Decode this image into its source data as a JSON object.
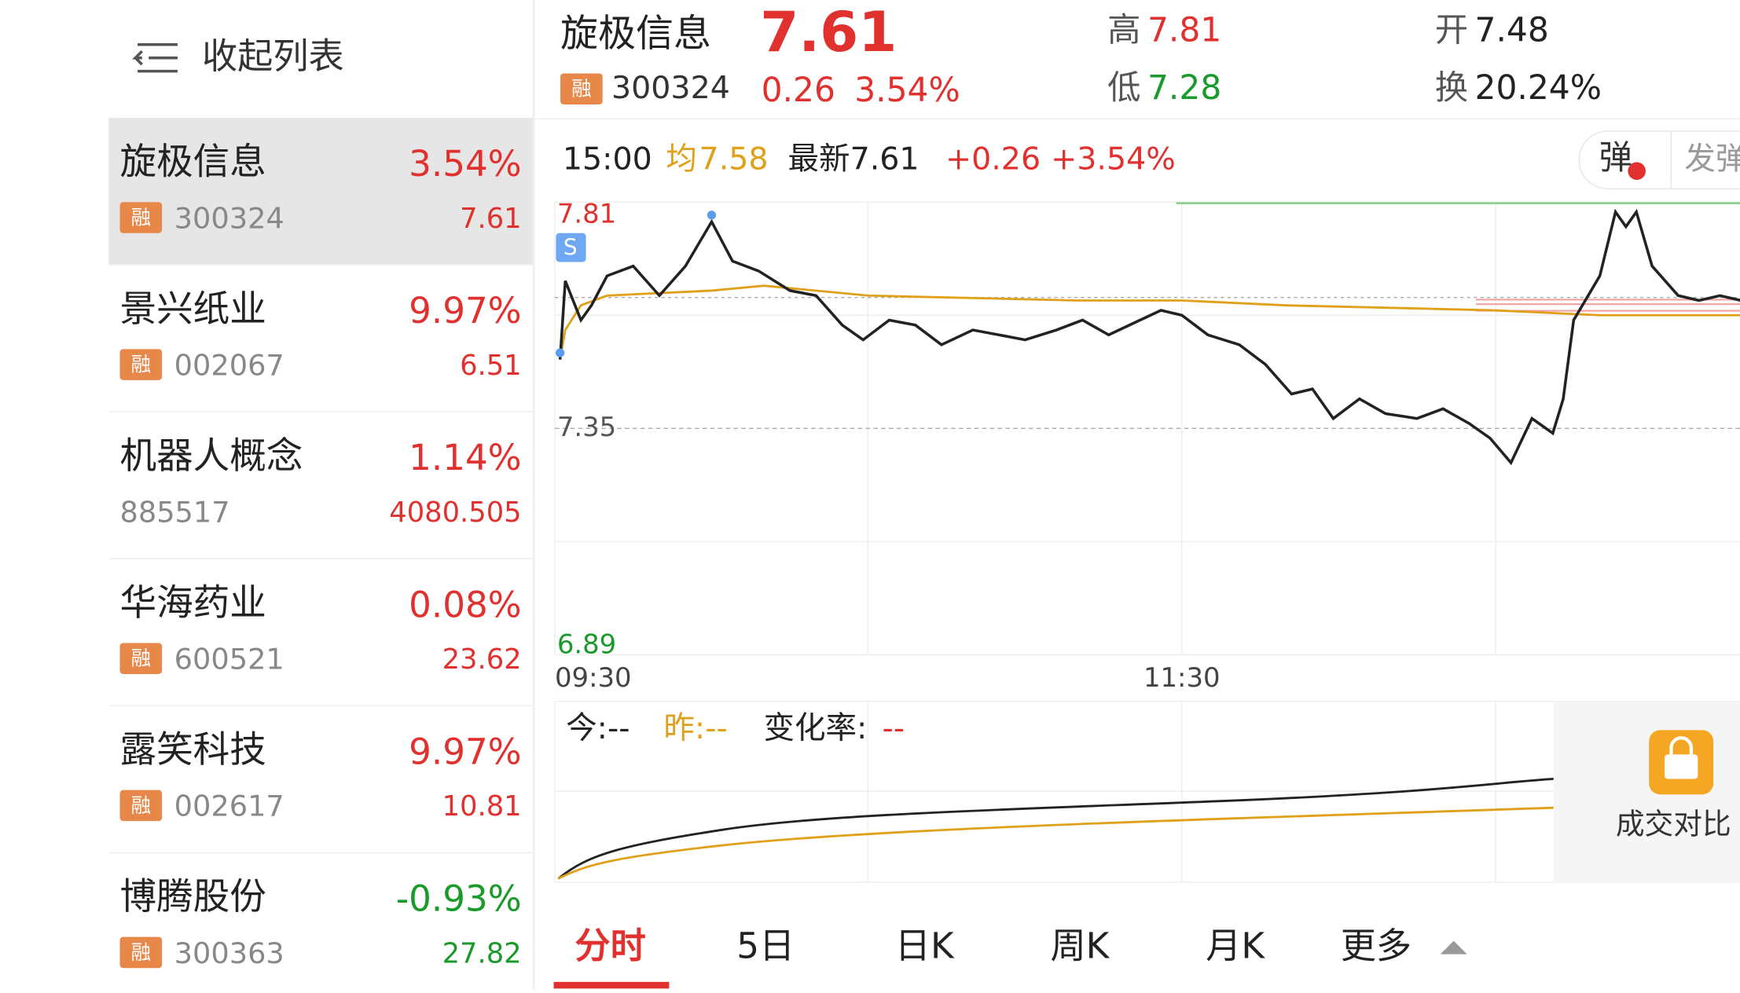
{
  "sidebar": {
    "collapse": "收起列表",
    "items": [
      {
        "name": "旋极信息",
        "tag": "融",
        "code": "300324",
        "change": "3.54%",
        "price": "7.61"
      },
      {
        "name": "景兴纸业",
        "tag": "融",
        "code": "002067",
        "change": "9.97%",
        "price": "6.51"
      },
      {
        "name": "机器人概念",
        "code": "885517",
        "change": "1.14%",
        "price": "4080.505"
      },
      {
        "name": "华海药业",
        "tag": "融",
        "code": "600521",
        "change": "0.08%",
        "price": "23.62"
      },
      {
        "name": "露笑科技",
        "tag": "融",
        "code": "002617",
        "change": "9.97%",
        "price": "10.81"
      },
      {
        "name": "博腾股份",
        "tag": "融",
        "code": "300363",
        "change": "-0.93%",
        "price": "27.82"
      }
    ]
  },
  "header": {
    "name": "旋极信息",
    "price": "7.61",
    "tag": "融",
    "code": "300324",
    "change": "0.26",
    "change_pct": "3.54%",
    "high_label": "高",
    "high": "7.81",
    "low_label": "低",
    "low": "7.28",
    "open_label": "开",
    "open": "7.48",
    "turnover_label": "换",
    "turnover": "20.24%"
  },
  "info": {
    "time": "15:00",
    "avg_label": "均",
    "avg": "7.58",
    "latest_label": "最新",
    "latest": "7.61",
    "change": "+0.26",
    "change_pct": "+3.54%",
    "danmaku": "弹",
    "send": "发弹"
  },
  "chart_data": {
    "type": "line",
    "marker": "S",
    "xlim": [
      0,
      240
    ],
    "xticks": [
      {
        "value": 0,
        "label": "09:30"
      },
      {
        "value": 120,
        "label": "11:30"
      }
    ],
    "ylim": [
      6.89,
      7.81
    ],
    "yticks": [
      6.89,
      7.35,
      7.81
    ],
    "ytick_colors": [
      "#1a9a2a",
      "#555555",
      "#e0312f"
    ],
    "series": [
      {
        "color": "#222222",
        "x": [
          1,
          2,
          5,
          7,
          10,
          15,
          20,
          25,
          30,
          34,
          39,
          45,
          50,
          55,
          59,
          64,
          69,
          74,
          80,
          85,
          90,
          96,
          101,
          106,
          112,
          116,
          120,
          125,
          131,
          136,
          141,
          145,
          149,
          154,
          159,
          165,
          170,
          175,
          179,
          183,
          187,
          191,
          193,
          195,
          200,
          203,
          205,
          207,
          210,
          215,
          219,
          223,
          227
        ],
        "values": [
          7.49,
          7.65,
          7.57,
          7.6,
          7.66,
          7.68,
          7.62,
          7.68,
          7.77,
          7.69,
          7.67,
          7.63,
          7.62,
          7.56,
          7.53,
          7.57,
          7.56,
          7.52,
          7.55,
          7.54,
          7.53,
          7.55,
          7.57,
          7.54,
          7.57,
          7.59,
          7.58,
          7.54,
          7.52,
          7.48,
          7.42,
          7.43,
          7.37,
          7.41,
          7.38,
          7.37,
          7.39,
          7.36,
          7.33,
          7.28,
          7.37,
          7.34,
          7.41,
          7.57,
          7.66,
          7.79,
          7.76,
          7.79,
          7.68,
          7.62,
          7.61,
          7.62,
          7.61
        ]
      },
      {
        "color": "#e0a01a",
        "x": [
          1,
          2,
          5,
          10,
          30,
          40,
          60,
          100,
          120,
          140,
          180,
          200,
          227
        ],
        "values": [
          7.49,
          7.55,
          7.6,
          7.62,
          7.63,
          7.64,
          7.62,
          7.61,
          7.61,
          7.6,
          7.59,
          7.58,
          7.58
        ]
      }
    ]
  },
  "volume": {
    "today": "今:--",
    "yesterday": "昨:--",
    "rate_label": "变化率:",
    "rate": "--",
    "locked": "成交对比"
  },
  "tabs": [
    "分时",
    "5日",
    "日K",
    "周K",
    "月K",
    "更多"
  ]
}
